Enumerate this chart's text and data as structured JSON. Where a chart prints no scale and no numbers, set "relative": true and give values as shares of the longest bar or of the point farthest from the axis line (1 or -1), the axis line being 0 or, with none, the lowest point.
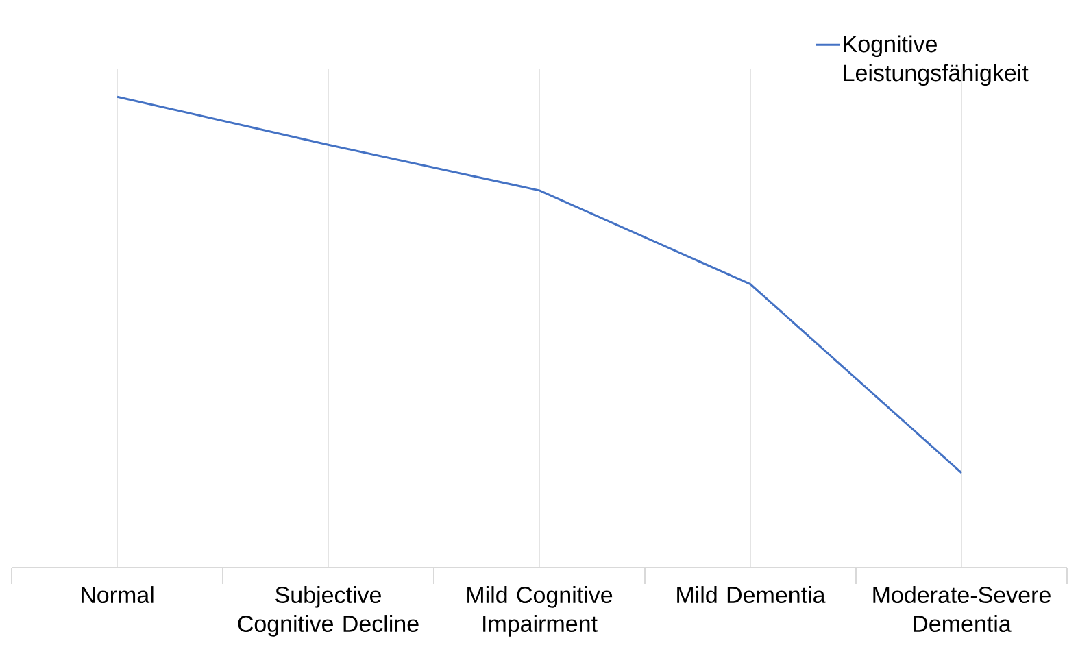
{
  "chart_data": {
    "type": "line",
    "relative": true,
    "categories": [
      "Normal",
      "Subjective Cognitive Decline",
      "Mild Cognitive Impairment",
      "Mild Dementia",
      "Moderate-Severe Dementia"
    ],
    "series": [
      {
        "name": "Kognitive Leistungsfähigkeit",
        "color": "#4472c4",
        "values": [
          1,
          0.898,
          0.801,
          0.602,
          0.201
        ]
      }
    ],
    "grid": "x",
    "legend": "top right",
    "marker": "none",
    "line_style": "solid"
  }
}
